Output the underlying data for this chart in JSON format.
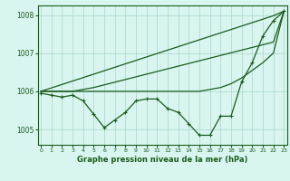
{
  "xlabel": "Graphe pression niveau de la mer (hPa)",
  "x": [
    0,
    1,
    2,
    3,
    4,
    5,
    6,
    7,
    8,
    9,
    10,
    11,
    12,
    13,
    14,
    15,
    16,
    17,
    18,
    19,
    20,
    21,
    22,
    23
  ],
  "line_wavy": [
    1005.95,
    1005.9,
    1005.85,
    1005.9,
    1005.75,
    1005.4,
    1005.05,
    1005.25,
    1005.45,
    1005.75,
    1005.8,
    1005.8,
    1005.55,
    1005.45,
    1005.15,
    1004.85,
    1004.85,
    1005.35,
    1005.35,
    1006.25,
    1006.75,
    1007.45,
    1007.85,
    1008.1
  ],
  "line_steep": [
    1006.0,
    1006.09,
    1006.18,
    1006.27,
    1006.36,
    1006.45,
    1006.54,
    1006.63,
    1006.72,
    1006.81,
    1006.9,
    1006.99,
    1007.08,
    1007.17,
    1007.26,
    1007.35,
    1007.44,
    1007.53,
    1007.62,
    1007.71,
    1007.8,
    1007.89,
    1007.98,
    1008.1
  ],
  "line_mid": [
    1006.0,
    1006.0,
    1006.0,
    1006.0,
    1006.05,
    1006.1,
    1006.17,
    1006.24,
    1006.31,
    1006.38,
    1006.45,
    1006.52,
    1006.59,
    1006.66,
    1006.73,
    1006.8,
    1006.87,
    1006.94,
    1007.01,
    1007.08,
    1007.15,
    1007.22,
    1007.29,
    1008.1
  ],
  "line_flat": [
    1006.0,
    1006.0,
    1006.0,
    1006.0,
    1006.0,
    1006.0,
    1006.0,
    1006.0,
    1006.0,
    1006.0,
    1006.0,
    1006.0,
    1006.0,
    1006.0,
    1006.0,
    1006.0,
    1006.05,
    1006.1,
    1006.2,
    1006.35,
    1006.55,
    1006.75,
    1007.0,
    1008.1
  ],
  "line_color": "#1a5c1a",
  "bg_color": "#d8f5f0",
  "grid_color": "#aad4cc",
  "ylim": [
    1004.6,
    1008.25
  ],
  "yticks": [
    1005,
    1006,
    1007,
    1008
  ],
  "xlim": [
    -0.3,
    23.3
  ],
  "marker": "+",
  "markersize": 3.5,
  "linewidth": 0.9
}
